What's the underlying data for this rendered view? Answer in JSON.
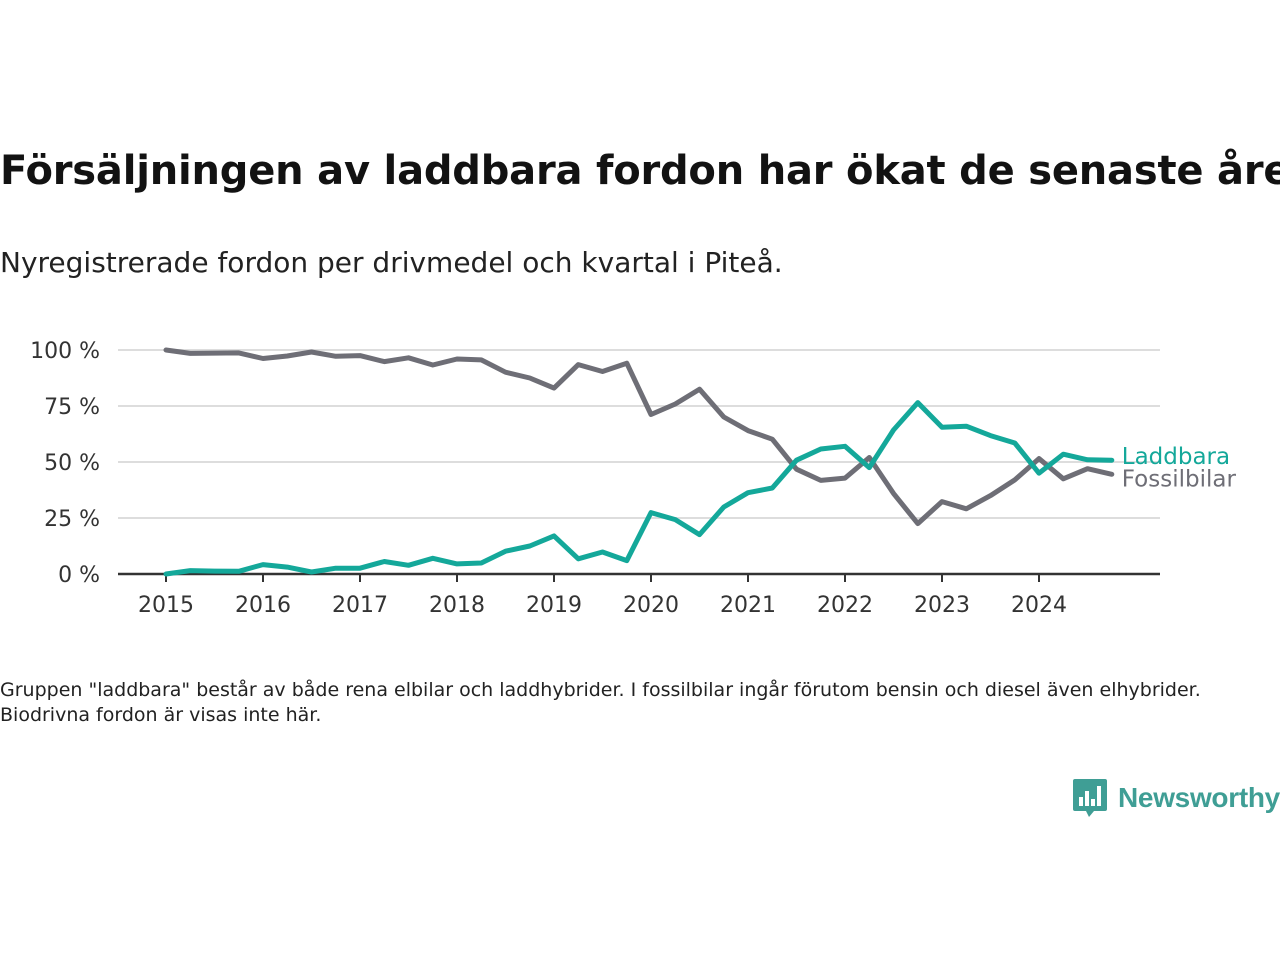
{
  "header": {
    "title": "Försäljningen av laddbara fordon har ökat de senaste åren",
    "subtitle": "Nyregistrerade fordon per drivmedel och kvartal i Piteå."
  },
  "note": "Gruppen \"laddbara\" består av både rena elbilar och laddhybrider. I fossilbilar ingår förutom bensin och diesel även elhybrider. Biodrivna fordon är visas inte här.",
  "brand": {
    "name": "Newsworthy",
    "icon": "bar-chart-icon",
    "color": "#3f9e95"
  },
  "chart_data": {
    "type": "line",
    "xlabel": "",
    "ylabel": "",
    "x_start": 2015,
    "x_step": 0.25,
    "xlim": [
      2015,
      2025
    ],
    "ylim": [
      0,
      100
    ],
    "y_ticks": [
      0,
      25,
      50,
      75,
      100
    ],
    "y_tick_labels": [
      "0 %",
      "25 %",
      "50 %",
      "75 %",
      "100 %"
    ],
    "x_ticks": [
      2015,
      2016,
      2017,
      2018,
      2019,
      2020,
      2021,
      2022,
      2023,
      2024
    ],
    "x_tick_labels": [
      "2015",
      "2016",
      "2017",
      "2018",
      "2019",
      "2020",
      "2021",
      "2022",
      "2023",
      "2024"
    ],
    "grid": true,
    "legend": "inline labels at right end of lines",
    "series": [
      {
        "name": "Fossilbilar",
        "color": "#6e6e76",
        "values": [
          100,
          98.5,
          98.6,
          98.7,
          96.2,
          97.3,
          99.1,
          97.2,
          97.5,
          94.8,
          96.5,
          93.3,
          96,
          95.6,
          90.1,
          87.5,
          83,
          93.5,
          90.4,
          94.1,
          71.2,
          75.9,
          82.5,
          70.1,
          64,
          60.2,
          46.8,
          41.8,
          42.8,
          52,
          36,
          22.5,
          32.3,
          29.1,
          35,
          42,
          51.5,
          42.5,
          47,
          44.5
        ]
      },
      {
        "name": "Laddbara",
        "color": "#14a89a",
        "values": [
          0,
          1.5,
          1.3,
          1.2,
          4.2,
          3.1,
          0.9,
          2.6,
          2.6,
          5.6,
          3.9,
          7,
          4.5,
          4.9,
          10.2,
          12.5,
          17,
          6.8,
          9.8,
          6,
          27.4,
          24.3,
          17.6,
          29.9,
          36.3,
          38.4,
          50.8,
          55.8,
          57,
          47.5,
          64.3,
          76.5,
          65.5,
          66,
          61.8,
          58.5,
          45,
          53.5,
          51,
          50.8
        ]
      }
    ]
  }
}
